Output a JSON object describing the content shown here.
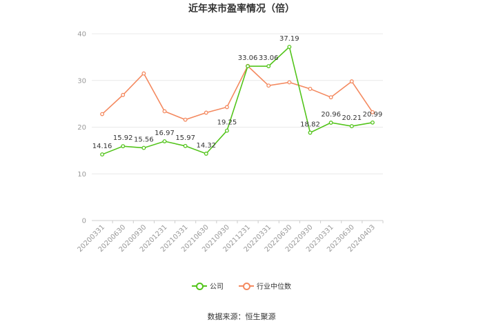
{
  "chart_data": {
    "type": "line",
    "title": "近年来市盈率情况（倍）",
    "categories": [
      "20200331",
      "20200630",
      "20200930",
      "20201231",
      "20210331",
      "20210630",
      "20210930",
      "20211231",
      "20220331",
      "20220630",
      "20220930",
      "20230331",
      "20230630",
      "20240403"
    ],
    "ylim": [
      0,
      40
    ],
    "yticks": [
      0,
      10,
      20,
      30,
      40
    ],
    "grid": true,
    "legend_position": "bottom",
    "series": [
      {
        "name": "公司",
        "color": "#52c41a",
        "values": [
          14.16,
          15.92,
          15.56,
          16.97,
          15.97,
          14.32,
          19.25,
          33.06,
          33.06,
          37.19,
          18.82,
          20.96,
          20.21,
          20.99
        ],
        "labels": [
          "14.16",
          "15.92",
          "15.56",
          "16.97",
          "15.97",
          "14.32",
          "19.25",
          "33.06",
          "33.06",
          "37.19",
          "18.82",
          "20.96",
          "20.21",
          "20.99"
        ]
      },
      {
        "name": "行业中位数",
        "color": "#f4895f",
        "values": [
          22.8,
          26.9,
          31.5,
          23.4,
          21.6,
          23.1,
          24.3,
          33.1,
          28.9,
          29.6,
          28.2,
          26.4,
          29.8,
          23.2
        ]
      }
    ]
  },
  "source": "数据来源：恒生聚源"
}
